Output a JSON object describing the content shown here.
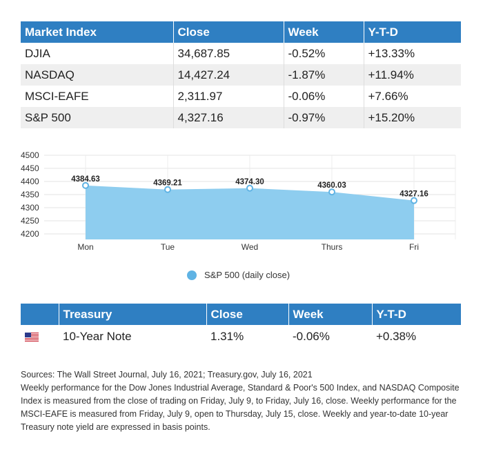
{
  "market_table": {
    "headers": [
      "Market Index",
      "Close",
      "Week",
      "Y-T-D"
    ],
    "rows": [
      [
        "DJIA",
        "34,687.85",
        "-0.52%",
        "+13.33%"
      ],
      [
        "NASDAQ",
        "14,427.24",
        "-1.87%",
        "+11.94%"
      ],
      [
        "MSCI-EAFE",
        "2,311.97",
        "-0.06%",
        "+7.66%"
      ],
      [
        "S&P 500",
        "4,327.16",
        "-0.97%",
        "+15.20%"
      ]
    ]
  },
  "chart_data": {
    "type": "area",
    "categories": [
      "Mon",
      "Tue",
      "Wed",
      "Thurs",
      "Fri"
    ],
    "series": [
      {
        "name": "S&P 500 (daily close)",
        "values": [
          4384.63,
          4369.21,
          4374.3,
          4360.03,
          4327.16
        ],
        "labels": [
          "4384.63",
          "4369.21",
          "4374.30",
          "4360.03",
          "4327.16"
        ]
      }
    ],
    "yticks": [
      "4500",
      "4450",
      "4400",
      "4350",
      "4300",
      "4250",
      "4200"
    ],
    "ylim": [
      4200,
      4500
    ],
    "grid": true,
    "legend": "bottom-center",
    "colors": {
      "fill": "#8ecdef",
      "point": "#5fb3e4",
      "legend_dot": "#5fb3e4"
    }
  },
  "treasury_table": {
    "headers": [
      "Treasury",
      "Close",
      "Week",
      "Y-T-D"
    ],
    "rows": [
      [
        "10-Year Note",
        "1.31%",
        "-0.06%",
        "+0.38%"
      ]
    ],
    "flag_icon": "us-flag-icon"
  },
  "notes": {
    "sources": "Sources: The Wall Street Journal, July 16, 2021; Treasury.gov, July 16, 2021",
    "body": "Weekly performance for the Dow Jones Industrial Average, Standard & Poor's 500 Index, and NASDAQ Composite Index is measured from the close of trading on Friday, July 9, to Friday, July 16, close. Weekly performance for the MSCI-EAFE is measured from Friday, July 9, open to Thursday, July 15, close. Weekly and year-to-date 10-year Treasury note yield are expressed in basis points."
  }
}
